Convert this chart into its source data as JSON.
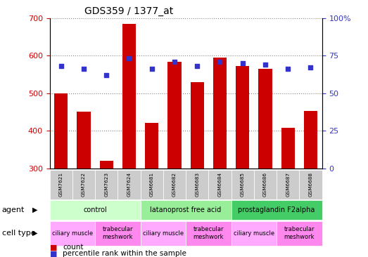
{
  "title": "GDS359 / 1377_at",
  "samples": [
    "GSM7621",
    "GSM7622",
    "GSM7623",
    "GSM7624",
    "GSM6681",
    "GSM6682",
    "GSM6683",
    "GSM6684",
    "GSM6685",
    "GSM6686",
    "GSM6687",
    "GSM6688"
  ],
  "counts": [
    500,
    450,
    320,
    685,
    420,
    583,
    530,
    595,
    572,
    565,
    407,
    452
  ],
  "percentiles": [
    68,
    66,
    62,
    73,
    66,
    71,
    68,
    71,
    70,
    69,
    66,
    67
  ],
  "ylim": [
    300,
    700
  ],
  "y2lim": [
    0,
    100
  ],
  "yticks": [
    300,
    400,
    500,
    600,
    700
  ],
  "y2ticks": [
    0,
    25,
    50,
    75,
    100
  ],
  "y2ticklabels": [
    "0",
    "25",
    "50",
    "75",
    "100%"
  ],
  "bar_color": "#cc0000",
  "dot_color": "#3333cc",
  "agents": [
    {
      "label": "control",
      "start": 0,
      "end": 4,
      "color": "#ccffcc"
    },
    {
      "label": "latanoprost free acid",
      "start": 4,
      "end": 8,
      "color": "#99ee99"
    },
    {
      "label": "prostaglandin F2alpha",
      "start": 8,
      "end": 12,
      "color": "#44cc66"
    }
  ],
  "cell_types": [
    {
      "label": "ciliary muscle",
      "start": 0,
      "end": 2,
      "color": "#ffaaff"
    },
    {
      "label": "trabecular\nmeshwork",
      "start": 2,
      "end": 4,
      "color": "#ff88ee"
    },
    {
      "label": "ciliary muscle",
      "start": 4,
      "end": 6,
      "color": "#ffaaff"
    },
    {
      "label": "trabecular\nmeshwork",
      "start": 6,
      "end": 8,
      "color": "#ff88ee"
    },
    {
      "label": "ciliary muscle",
      "start": 8,
      "end": 10,
      "color": "#ffaaff"
    },
    {
      "label": "trabecular\nmeshwork",
      "start": 10,
      "end": 12,
      "color": "#ff88ee"
    }
  ],
  "legend_count_label": "count",
  "legend_pct_label": "percentile rank within the sample",
  "bar_color_legend": "#cc0000",
  "dot_color_legend": "#3333cc",
  "ylabel_color": "#cc0000",
  "y2label_color": "#3333cc",
  "grid_color": "#888888",
  "tick_bg_color": "#cccccc",
  "bar_width": 0.6,
  "fig_width": 5.23,
  "fig_height": 3.66,
  "fig_dpi": 100
}
